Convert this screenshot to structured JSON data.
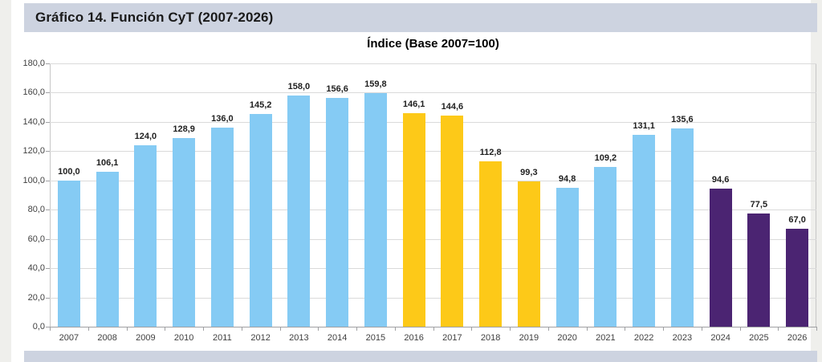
{
  "header": {
    "title": "Gráfico 14. Función CyT (2007-2026)"
  },
  "chart_data": {
    "type": "bar",
    "title": "Índice (Base 2007=100)",
    "categories": [
      "2007",
      "2008",
      "2009",
      "2010",
      "2011",
      "2012",
      "2013",
      "2014",
      "2015",
      "2016",
      "2017",
      "2018",
      "2019",
      "2020",
      "2021",
      "2022",
      "2023",
      "2024",
      "2025",
      "2026"
    ],
    "values": [
      100.0,
      106.1,
      124.0,
      128.9,
      136.0,
      145.2,
      158.0,
      156.6,
      159.8,
      146.1,
      144.6,
      112.8,
      99.3,
      94.8,
      109.2,
      131.1,
      135.6,
      94.6,
      77.5,
      67.0
    ],
    "value_labels": [
      "100,0",
      "106,1",
      "124,0",
      "128,9",
      "136,0",
      "145,2",
      "158,0",
      "156,6",
      "159,8",
      "146,1",
      "144,6",
      "112,8",
      "99,3",
      "94,8",
      "109,2",
      "131,1",
      "135,6",
      "94,6",
      "77,5",
      "67,0"
    ],
    "bar_color_keys": [
      "blue",
      "blue",
      "blue",
      "blue",
      "blue",
      "blue",
      "blue",
      "blue",
      "blue",
      "yellow",
      "yellow",
      "yellow",
      "yellow",
      "blue",
      "blue",
      "blue",
      "blue",
      "purple",
      "purple",
      "purple"
    ],
    "palette": {
      "blue": "#85CBF4",
      "yellow": "#FDC918",
      "purple": "#4B2472"
    },
    "ylim": [
      0,
      180
    ],
    "ytick_step": 20,
    "ytick_labels": [
      "0,0",
      "20,0",
      "40,0",
      "60,0",
      "80,0",
      "100,0",
      "120,0",
      "140,0",
      "160,0",
      "180,0"
    ],
    "decimal_separator": ",",
    "grid": true,
    "legend": "none",
    "value_labels_shown": true
  },
  "colors": {
    "page_bg": "#EFEFEC",
    "panel_bg": "#FFFFFF",
    "header_bg": "#CDD3E0",
    "footer_bg": "#CDD3E0",
    "gridline": "#DADADA",
    "plot_border": "#C6C6C6",
    "axis": "#9FA0A3",
    "tick_text": "#3F3F3F",
    "value_text": "#1F1F1F"
  }
}
